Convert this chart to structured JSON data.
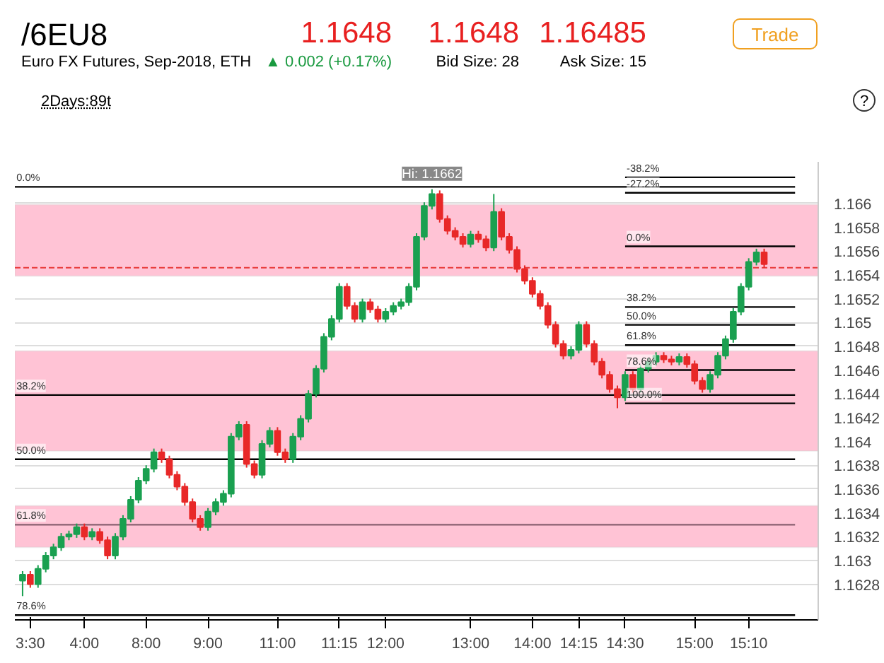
{
  "chart_data": {
    "type": "candlestick",
    "title": "/6EU8",
    "subtitle": "Euro FX Futures, Sep-2018, ETH",
    "annotations": [
      "1.1648",
      "▲ 0.002 (+0.17%)",
      "1.1648",
      "Bid Size: 28",
      "1.16485",
      "Ask Size: 15",
      "Trade",
      "2Days:89t",
      "?",
      "Hi: 1.1662",
      {
        "text": "0.0%",
        "y": 1.16614
      },
      {
        "text": "38.2%",
        "y": 1.16439
      },
      {
        "text": "50.0%",
        "y": 1.16385
      },
      {
        "text": "61.8%",
        "y": 1.1633
      },
      {
        "text": "78.6%",
        "y": 1.16254
      },
      {
        "text": "-38.2%",
        "y": 1.16622
      },
      {
        "text": "-27.2%",
        "y": 1.16609
      },
      {
        "text": "0.0%",
        "y": 1.16564
      },
      {
        "text": "38.2%",
        "y": 1.16513
      },
      {
        "text": "50.0%",
        "y": 1.16498
      },
      {
        "text": "61.8%",
        "y": 1.16481
      },
      {
        "text": "78.6%",
        "y": 1.1646
      },
      {
        "text": "100.0%",
        "y": 1.16432
      }
    ],
    "categories": [
      null,
      "3:30",
      null,
      null,
      null,
      null,
      null,
      null,
      "4:00",
      null,
      null,
      null,
      null,
      null,
      null,
      null,
      "8:00",
      null,
      null,
      null,
      null,
      null,
      null,
      null,
      "9:00",
      null,
      null,
      null,
      null,
      null,
      null,
      null,
      null,
      "11:00",
      null,
      null,
      null,
      null,
      null,
      null,
      null,
      "11:15",
      null,
      null,
      null,
      null,
      null,
      "12:00",
      null,
      null,
      null,
      null,
      null,
      null,
      null,
      null,
      null,
      null,
      "13:00",
      null,
      null,
      null,
      null,
      null,
      null,
      null,
      "14:00",
      null,
      null,
      null,
      null,
      null,
      "14:15",
      null,
      null,
      null,
      null,
      null,
      "14:30",
      null,
      null,
      null,
      null,
      null,
      null,
      null,
      null,
      "15:00",
      null,
      null,
      null,
      null,
      null,
      null,
      "15:10",
      null,
      null
    ],
    "ohlc": [
      [
        1.16283,
        1.16291,
        1.1627,
        1.16288
      ],
      [
        1.16288,
        1.16291,
        1.16277,
        1.1628
      ],
      [
        1.1628,
        1.16296,
        1.16277,
        1.16293
      ],
      [
        1.16293,
        1.16307,
        1.1629,
        1.16304
      ],
      [
        1.16304,
        1.16314,
        1.16301,
        1.16311
      ],
      [
        1.16311,
        1.16323,
        1.16308,
        1.1632
      ],
      [
        1.1632,
        1.16325,
        1.16317,
        1.16322
      ],
      [
        1.16322,
        1.16331,
        1.16319,
        1.16328
      ],
      [
        1.16328,
        1.16331,
        1.16317,
        1.1632
      ],
      [
        1.1632,
        1.16327,
        1.16317,
        1.16324
      ],
      [
        1.16324,
        1.16327,
        1.16314,
        1.16317
      ],
      [
        1.16317,
        1.1632,
        1.16301,
        1.16304
      ],
      [
        1.16304,
        1.16323,
        1.16301,
        1.1632
      ],
      [
        1.1632,
        1.16338,
        1.16317,
        1.16335
      ],
      [
        1.16335,
        1.16354,
        1.16332,
        1.16351
      ],
      [
        1.16351,
        1.1637,
        1.16348,
        1.16367
      ],
      [
        1.16367,
        1.1638,
        1.16364,
        1.16377
      ],
      [
        1.16377,
        1.16394,
        1.16374,
        1.16391
      ],
      [
        1.16391,
        1.16394,
        1.16382,
        1.16385
      ],
      [
        1.16385,
        1.16388,
        1.16369,
        1.16372
      ],
      [
        1.16372,
        1.16375,
        1.16359,
        1.16362
      ],
      [
        1.16362,
        1.16365,
        1.16346,
        1.16349
      ],
      [
        1.16349,
        1.16352,
        1.16332,
        1.16335
      ],
      [
        1.16335,
        1.16338,
        1.16325,
        1.16328
      ],
      [
        1.16328,
        1.16344,
        1.16325,
        1.16341
      ],
      [
        1.16341,
        1.16352,
        1.16338,
        1.16349
      ],
      [
        1.16349,
        1.16359,
        1.16346,
        1.16356
      ],
      [
        1.16356,
        1.16407,
        1.16353,
        1.16404
      ],
      [
        1.16404,
        1.16417,
        1.16401,
        1.16414
      ],
      [
        1.16414,
        1.16417,
        1.16378,
        1.16381
      ],
      [
        1.16381,
        1.16384,
        1.16369,
        1.16372
      ],
      [
        1.16372,
        1.16401,
        1.16369,
        1.16398
      ],
      [
        1.16398,
        1.16412,
        1.16395,
        1.16409
      ],
      [
        1.16409,
        1.16412,
        1.16388,
        1.16391
      ],
      [
        1.16391,
        1.16394,
        1.16382,
        1.16385
      ],
      [
        1.16385,
        1.16407,
        1.16382,
        1.16404
      ],
      [
        1.16404,
        1.16422,
        1.16401,
        1.16419
      ],
      [
        1.16419,
        1.16443,
        1.16416,
        1.1644
      ],
      [
        1.1644,
        1.16464,
        1.16437,
        1.16461
      ],
      [
        1.16461,
        1.16491,
        1.16458,
        1.16488
      ],
      [
        1.16488,
        1.16506,
        1.16485,
        1.16503
      ],
      [
        1.16503,
        1.16533,
        1.165,
        1.1653
      ],
      [
        1.1653,
        1.16533,
        1.16511,
        1.16514
      ],
      [
        1.16514,
        1.16517,
        1.165,
        1.16503
      ],
      [
        1.16503,
        1.1652,
        1.165,
        1.16517
      ],
      [
        1.16517,
        1.1652,
        1.16508,
        1.16511
      ],
      [
        1.16511,
        1.16514,
        1.165,
        1.16503
      ],
      [
        1.16503,
        1.16512,
        1.165,
        1.16509
      ],
      [
        1.16509,
        1.16517,
        1.16506,
        1.16514
      ],
      [
        1.16514,
        1.1652,
        1.16511,
        1.16517
      ],
      [
        1.16517,
        1.16533,
        1.16514,
        1.1653
      ],
      [
        1.1653,
        1.16575,
        1.16527,
        1.16572
      ],
      [
        1.16572,
        1.16601,
        1.16569,
        1.16598
      ],
      [
        1.16598,
        1.16612,
        1.16595,
        1.16608
      ],
      [
        1.16608,
        1.16611,
        1.16584,
        1.16587
      ],
      [
        1.16587,
        1.1659,
        1.16574,
        1.16577
      ],
      [
        1.16577,
        1.1658,
        1.16569,
        1.16572
      ],
      [
        1.16572,
        1.16575,
        1.16563,
        1.16566
      ],
      [
        1.16566,
        1.16577,
        1.16563,
        1.16574
      ],
      [
        1.16574,
        1.16577,
        1.16567,
        1.1657
      ],
      [
        1.1657,
        1.16573,
        1.1656,
        1.16563
      ],
      [
        1.16563,
        1.16608,
        1.1656,
        1.16593
      ],
      [
        1.16593,
        1.16596,
        1.16569,
        1.16572
      ],
      [
        1.16572,
        1.16575,
        1.16558,
        1.16561
      ],
      [
        1.16561,
        1.16564,
        1.16542,
        1.16545
      ],
      [
        1.16545,
        1.16548,
        1.16532,
        1.16535
      ],
      [
        1.16535,
        1.16538,
        1.16521,
        1.16524
      ],
      [
        1.16524,
        1.16527,
        1.16511,
        1.16514
      ],
      [
        1.16514,
        1.16517,
        1.16495,
        1.16498
      ],
      [
        1.16498,
        1.16501,
        1.16479,
        1.16482
      ],
      [
        1.16482,
        1.16485,
        1.16469,
        1.16472
      ],
      [
        1.16472,
        1.1648,
        1.16469,
        1.16477
      ],
      [
        1.16477,
        1.16501,
        1.16474,
        1.16498
      ],
      [
        1.16498,
        1.16501,
        1.16479,
        1.16482
      ],
      [
        1.16482,
        1.16485,
        1.16464,
        1.16467
      ],
      [
        1.16467,
        1.1647,
        1.16453,
        1.16456
      ],
      [
        1.16456,
        1.16459,
        1.16441,
        1.16444
      ],
      [
        1.16444,
        1.16447,
        1.16428,
        1.16437
      ],
      [
        1.16437,
        1.16459,
        1.16434,
        1.16456
      ],
      [
        1.16456,
        1.16459,
        1.16441,
        1.16444
      ],
      [
        1.16444,
        1.16464,
        1.16441,
        1.16461
      ],
      [
        1.16461,
        1.1647,
        1.16458,
        1.16467
      ],
      [
        1.16467,
        1.16475,
        1.16464,
        1.16472
      ],
      [
        1.16472,
        1.16475,
        1.16466,
        1.16469
      ],
      [
        1.16469,
        1.16472,
        1.16464,
        1.16467
      ],
      [
        1.16467,
        1.16474,
        1.16464,
        1.16471
      ],
      [
        1.16471,
        1.16474,
        1.16462,
        1.16465
      ],
      [
        1.16465,
        1.16468,
        1.16448,
        1.16451
      ],
      [
        1.16451,
        1.16454,
        1.16441,
        1.16444
      ],
      [
        1.16444,
        1.16459,
        1.16441,
        1.16456
      ],
      [
        1.16456,
        1.16475,
        1.16453,
        1.16472
      ],
      [
        1.16472,
        1.16489,
        1.16469,
        1.16486
      ],
      [
        1.16486,
        1.16512,
        1.16483,
        1.16509
      ],
      [
        1.16509,
        1.16533,
        1.16506,
        1.1653
      ],
      [
        1.1653,
        1.16554,
        1.16527,
        1.16551
      ],
      [
        1.16551,
        1.16562,
        1.16548,
        1.16559
      ],
      [
        1.16559,
        1.16562,
        1.16546,
        1.16549
      ]
    ],
    "ylim": [
      1.1625,
      1.16635
    ],
    "yticks": [
      1.1628,
      1.163,
      1.1632,
      1.1634,
      1.1636,
      1.1638,
      1.164,
      1.1642,
      1.1644,
      1.1646,
      1.1648,
      1.165,
      1.1652,
      1.1654,
      1.1656,
      1.1658,
      1.166
    ],
    "grid": "y",
    "bands": [
      {
        "axis": "y",
        "from": 1.16539,
        "to": 1.16599,
        "color": "#ffc3d5"
      },
      {
        "axis": "y",
        "from": 1.16392,
        "to": 1.16476,
        "color": "#ffc3d5"
      },
      {
        "axis": "y",
        "from": 1.16311,
        "to": 1.16346,
        "color": "#ffc3d5"
      }
    ],
    "ref_lines": [
      {
        "axis": "y",
        "value": 1.16614,
        "color": "#000000"
      },
      {
        "axis": "y",
        "value": 1.16439,
        "color": "#000000"
      },
      {
        "axis": "y",
        "value": 1.16385,
        "color": "#000000"
      },
      {
        "axis": "y",
        "value": 1.1633,
        "color": "#8a6070"
      },
      {
        "axis": "y",
        "value": 1.16254,
        "color": "#000000"
      },
      {
        "axis": "y",
        "value": 1.16622,
        "color": "#000000"
      },
      {
        "axis": "y",
        "value": 1.16609,
        "color": "#000000"
      },
      {
        "axis": "y",
        "value": 1.16564,
        "color": "#000000"
      },
      {
        "axis": "y",
        "value": 1.16513,
        "color": "#000000"
      },
      {
        "axis": "y",
        "value": 1.16498,
        "color": "#000000"
      },
      {
        "axis": "y",
        "value": 1.16481,
        "color": "#000000"
      },
      {
        "axis": "y",
        "value": 1.1646,
        "color": "#000000"
      },
      {
        "axis": "y",
        "value": 1.16432,
        "color": "#000000"
      },
      {
        "axis": "y",
        "value": 1.16546,
        "color": "#e83a3a",
        "line_style": "dashed"
      }
    ]
  }
}
